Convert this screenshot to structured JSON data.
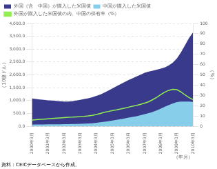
{
  "chart_data": {
    "type": "line",
    "xlabel": "（年月）",
    "ylabel": "（10億ドル）",
    "y2label": "（%）",
    "source": "資料：CEICデータベースから作成。",
    "categories": [
      "2000年3月",
      null,
      null,
      null,
      "2001年3月",
      null,
      null,
      null,
      "2002年3月",
      null,
      null,
      null,
      "2003年3月",
      null,
      null,
      null,
      "2004年3月",
      null,
      null,
      null,
      "2005年3月",
      null,
      null,
      null,
      "2006年3月",
      null,
      null,
      null,
      "2007年3月",
      null,
      null,
      null,
      "2008年3月",
      null,
      null,
      null,
      "2009年3月",
      null,
      null,
      null,
      "2010年3月"
    ],
    "series": [
      {
        "name": "外国（含　中国）が購入した米国債",
        "type": "area",
        "color": "#3a3a8c",
        "values": [
          1080,
          1060,
          1045,
          1030,
          1010,
          1000,
          990,
          975,
          965,
          960,
          975,
          1000,
          1030,
          1060,
          1090,
          1130,
          1180,
          1240,
          1310,
          1390,
          1470,
          1560,
          1640,
          1720,
          1800,
          1870,
          1940,
          2010,
          2080,
          2130,
          2160,
          2200,
          2240,
          2290,
          2370,
          2480,
          2640,
          2870,
          3150,
          3430,
          3650
        ]
      },
      {
        "name": "中国が購入した米国債",
        "type": "area",
        "color": "#87ceeb",
        "values": [
          65,
          68,
          70,
          72,
          74,
          76,
          78,
          80,
          82,
          84,
          87,
          92,
          97,
          103,
          110,
          120,
          135,
          155,
          178,
          200,
          225,
          250,
          275,
          305,
          335,
          365,
          395,
          430,
          470,
          510,
          560,
          620,
          690,
          760,
          830,
          890,
          940,
          960,
          965,
          960,
          950
        ]
      },
      {
        "name": "外国が購入した米国債の内、中国の保有率（%）",
        "type": "line",
        "axis": "y2",
        "color": "#90ee50",
        "values": [
          6.0,
          6.4,
          6.7,
          7.0,
          7.3,
          7.6,
          7.9,
          8.2,
          8.5,
          8.8,
          8.9,
          9.2,
          9.4,
          9.7,
          10.1,
          10.6,
          11.5,
          12.5,
          13.6,
          14.4,
          15.3,
          16.0,
          16.8,
          17.7,
          18.6,
          19.5,
          20.4,
          21.4,
          22.6,
          23.9,
          25.9,
          28.2,
          30.8,
          33.2,
          35.0,
          35.9,
          35.6,
          33.5,
          30.6,
          28.0,
          26.0
        ]
      }
    ],
    "ylim": [
      0,
      4000
    ],
    "yticks": [
      {
        "value": 0,
        "label": "0.0"
      },
      {
        "value": 500,
        "label": "500.0"
      },
      {
        "value": 1000,
        "label": "1,000.0"
      },
      {
        "value": 1500,
        "label": "1,500.0"
      },
      {
        "value": 2000,
        "label": "2,000.0"
      },
      {
        "value": 2500,
        "label": "2,500.0"
      },
      {
        "value": 3000,
        "label": "3,000.0"
      },
      {
        "value": 3500,
        "label": "3,500.0"
      },
      {
        "value": 4000,
        "label": "4,000.0"
      }
    ],
    "y2lim": [
      0,
      100
    ],
    "y2ticks": [
      0,
      10,
      20,
      30,
      40,
      50,
      60,
      70,
      80,
      90,
      100
    ],
    "stacked": false,
    "grid": true,
    "legend": "upper left"
  }
}
